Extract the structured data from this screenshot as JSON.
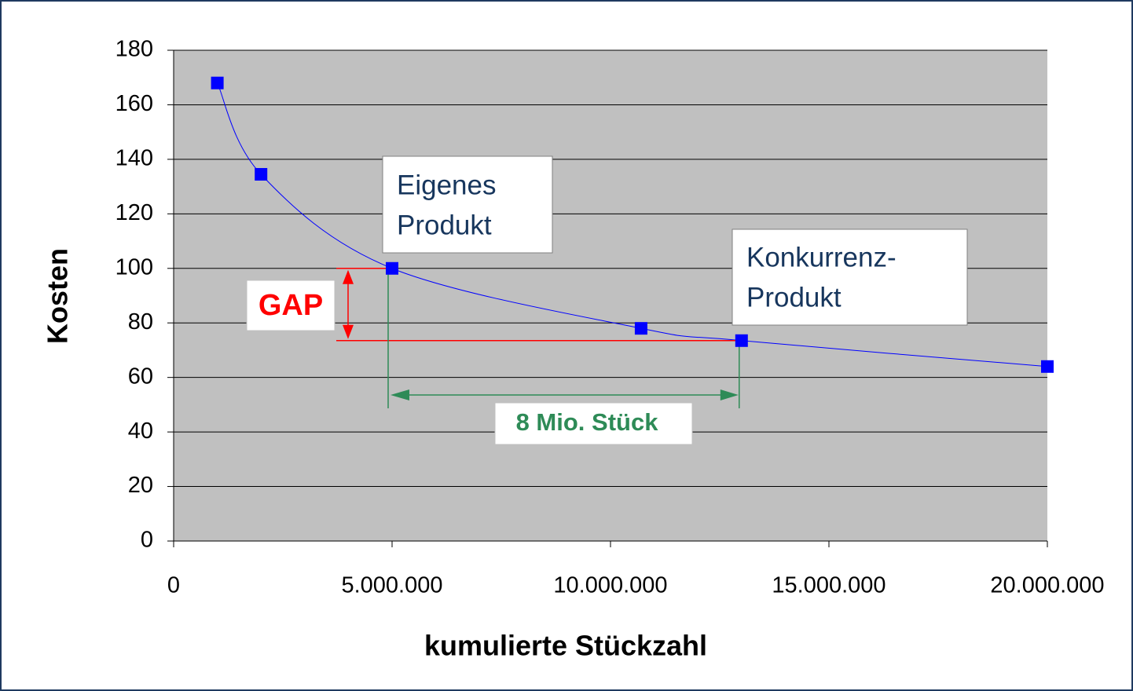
{
  "chart_data": {
    "type": "scatter",
    "x_label": "kumulierte Stückzahl",
    "y_label": "Kosten",
    "xlim": [
      0,
      20000000
    ],
    "ylim": [
      0,
      180
    ],
    "xticks": [
      0,
      {
        "value": 5000000,
        "label": "5.000.000"
      },
      {
        "value": 10000000,
        "label": "10.000.000"
      },
      {
        "value": 15000000,
        "label": "15.000.000"
      },
      {
        "value": 20000000,
        "label": "20.000.000"
      }
    ],
    "yticks": [
      0,
      20,
      40,
      60,
      80,
      100,
      120,
      140,
      160,
      180
    ],
    "grid": true,
    "plot_background": "#c0c0c0",
    "series": [
      {
        "color": "#0000ff",
        "x": [
          1000000,
          2000000,
          5000000,
          10700000,
          13000000,
          20000000
        ],
        "values": [
          168,
          134.5,
          100,
          78,
          73.5,
          64
        ]
      }
    ],
    "annotations": [
      {
        "lines": [
          "Eigenes",
          "Produkt"
        ]
      },
      {
        "lines": [
          "Konkurrenz-",
          "Produkt"
        ]
      },
      {
        "text": "GAP"
      },
      {
        "text": "8 Mio. Stück"
      }
    ]
  }
}
